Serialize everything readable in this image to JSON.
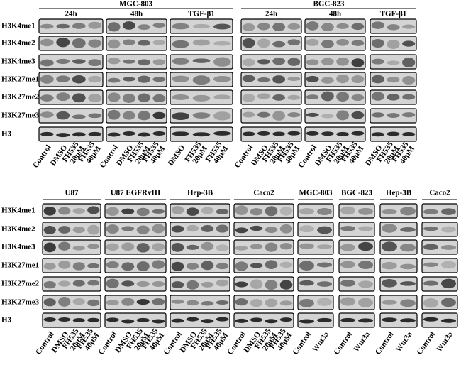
{
  "top": {
    "rows": [
      "H3K4me1",
      "H3K4me2",
      "H3K4me3",
      "H3K27me1",
      "H3K27me2",
      "H3K27me3",
      "H3"
    ],
    "groups": [
      {
        "title": "MGC-803",
        "panels": [
          {
            "title": "24h",
            "lanes": [
              [
                "Control"
              ],
              [
                "DMSO"
              ],
              [
                "FH535",
                "20μM"
              ],
              [
                "FH535",
                "40μM"
              ]
            ]
          },
          {
            "title": "48h",
            "lanes": [
              [
                "Control"
              ],
              [
                "DMSO"
              ],
              [
                "FH535",
                "20μM"
              ],
              [
                "FH535",
                "40μM"
              ]
            ]
          },
          {
            "title": "TGF-β1",
            "lanes": [
              [
                "DMSO"
              ],
              [
                "FH535",
                "20μM"
              ],
              [
                "FH535",
                "40μM"
              ]
            ]
          }
        ]
      },
      {
        "title": "BGC-823",
        "panels": [
          {
            "title": "24h",
            "lanes": [
              [
                "Control"
              ],
              [
                "DMSO"
              ],
              [
                "FH535",
                "20μM"
              ],
              [
                "FH535",
                "40μM"
              ]
            ]
          },
          {
            "title": "48h",
            "lanes": [
              [
                "Control"
              ],
              [
                "DMSO"
              ],
              [
                "FH535",
                "20μM"
              ],
              [
                "FH535",
                "40μM"
              ]
            ]
          },
          {
            "title": "TGF-β1",
            "lanes": [
              [
                "DMSO"
              ],
              [
                "FH535",
                "20μM"
              ],
              [
                "FH535",
                "40μM"
              ]
            ]
          }
        ]
      }
    ]
  },
  "bottom": {
    "rows": [
      "H3K4me1",
      "H3K4me2",
      "H3K4me3",
      "H3K27me1",
      "H3K27me2",
      "H3K27me3",
      "H3"
    ],
    "panels": [
      {
        "title": "U87",
        "lanes": [
          [
            "Control"
          ],
          [
            "DMSO"
          ],
          [
            "FH535",
            "20μM"
          ],
          [
            "FH535",
            "40μM"
          ]
        ]
      },
      {
        "title": "U87 EGFRvIII",
        "lanes": [
          [
            "Control"
          ],
          [
            "DMSO"
          ],
          [
            "FH535",
            "20μM"
          ],
          [
            "FH535",
            "40μM"
          ]
        ]
      },
      {
        "title": "Hep-3B",
        "lanes": [
          [
            "Control"
          ],
          [
            "DMSO"
          ],
          [
            "FH535",
            "20μM"
          ],
          [
            "FH535",
            "40μM"
          ]
        ]
      },
      {
        "title": "Caco2",
        "lanes": [
          [
            "Control"
          ],
          [
            "DMSO"
          ],
          [
            "FH535",
            "20μM"
          ],
          [
            "FH535",
            "40μM"
          ]
        ]
      },
      {
        "title": "MGC-803",
        "lanes": [
          [
            "Control"
          ],
          [
            "Wnt3a"
          ]
        ]
      },
      {
        "title": "BGC-823",
        "lanes": [
          [
            "Control"
          ],
          [
            "Wnt3a"
          ]
        ]
      },
      {
        "title": "Hep-3B",
        "lanes": [
          [
            "Control"
          ],
          [
            "Wnt3a"
          ]
        ]
      },
      {
        "title": "Caco2",
        "lanes": [
          [
            "Control"
          ],
          [
            "Wnt3a"
          ]
        ]
      }
    ]
  }
}
